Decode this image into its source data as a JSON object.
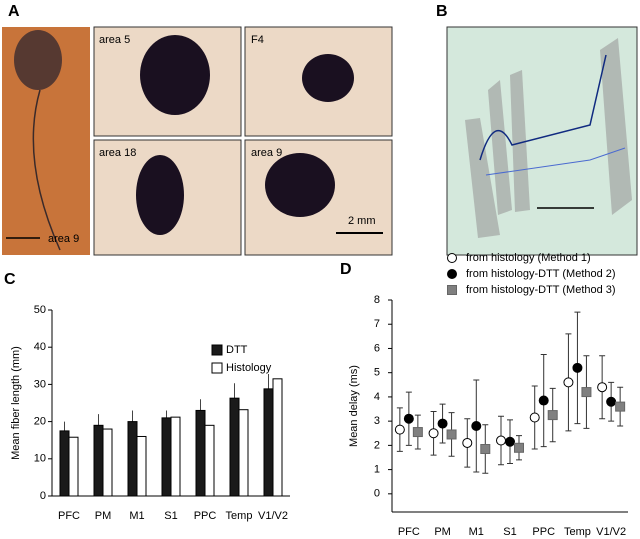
{
  "figure": {
    "panel_labels": [
      "A",
      "B",
      "C",
      "D"
    ],
    "image_labels": [
      "area 9",
      "area 5",
      "F4",
      "area 18",
      "area 9"
    ],
    "scale_label": "2 mm"
  },
  "chart_data": [
    {
      "type": "bar",
      "ylabel": "Mean fiber length (mm)",
      "categories": [
        "PFC",
        "PM",
        "M1",
        "S1",
        "PPC",
        "Temp",
        "V1/V2"
      ],
      "series": [
        {
          "name": "DTT",
          "color": "#1a1a1a",
          "values": [
            17.5,
            19,
            20,
            21,
            23,
            26.3,
            28.8
          ],
          "errors": [
            2.5,
            3,
            3,
            2,
            3,
            4,
            4
          ]
        },
        {
          "name": "Histology",
          "color": "#ffffff",
          "values": [
            15.8,
            18,
            16,
            21.2,
            19,
            23.2,
            31.5
          ]
        }
      ],
      "ylim": [
        0,
        50
      ],
      "yticks": [
        0,
        10,
        20,
        30,
        40,
        50
      ]
    },
    {
      "type": "scatter",
      "ylabel": "Mean delay (ms)",
      "categories": [
        "PFC",
        "PM",
        "M1",
        "S1",
        "PPC",
        "Temp",
        "V1/V2"
      ],
      "series": [
        {
          "name": "from histology (Method 1)",
          "color": "#ffffff",
          "marker": "circle",
          "values": [
            2.65,
            2.5,
            2.1,
            2.2,
            3.15,
            4.6,
            4.4
          ],
          "errors": [
            0.9,
            0.9,
            1.0,
            1.0,
            1.3,
            2.0,
            1.3
          ]
        },
        {
          "name": "from histology-DTT (Method 2)",
          "color": "#000000",
          "marker": "circle",
          "values": [
            3.1,
            2.9,
            2.8,
            2.15,
            3.85,
            5.2,
            3.8
          ],
          "errors": [
            1.1,
            0.8,
            1.9,
            0.9,
            1.9,
            2.3,
            0.8
          ]
        },
        {
          "name": "from histology-DTT (Method 3)",
          "color": "#808080",
          "marker": "square",
          "values": [
            2.55,
            2.45,
            1.85,
            1.9,
            3.25,
            4.2,
            3.6
          ],
          "errors": [
            0.7,
            0.9,
            1.0,
            0.5,
            1.1,
            1.5,
            0.8
          ]
        }
      ],
      "ylim": [
        -0.75,
        8
      ],
      "yticks": [
        0,
        1,
        2,
        3,
        4,
        5,
        6,
        7,
        8
      ]
    }
  ]
}
